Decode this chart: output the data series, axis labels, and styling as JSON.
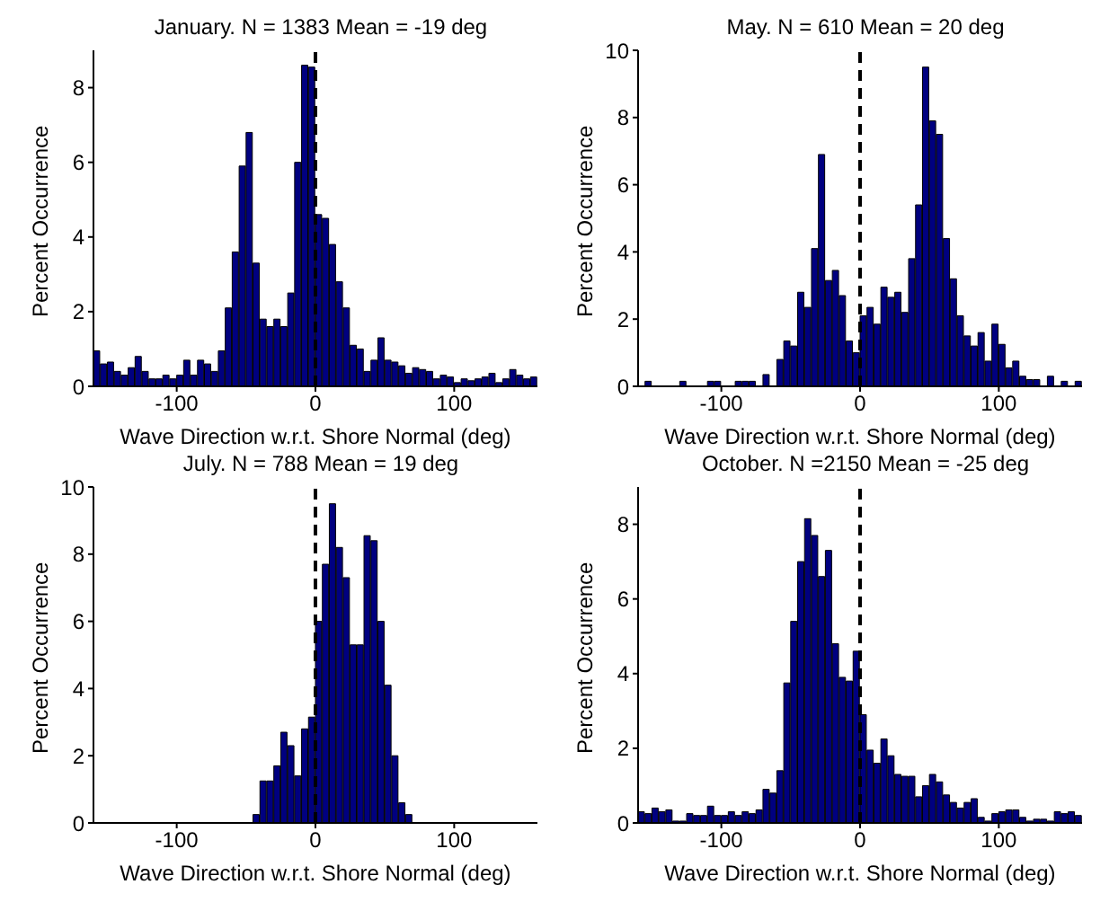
{
  "chart_data": [
    {
      "type": "histogram",
      "title": "January. N = 1383 Mean = -19 deg",
      "xlabel": "Wave Direction w.r.t. Shore Normal (deg)",
      "ylabel": "Percent Occurrence",
      "color": "#000080",
      "bins": [
        -160,
        -155,
        -150,
        -145,
        -140,
        -135,
        -130,
        -125,
        -120,
        -115,
        -110,
        -105,
        -100,
        -95,
        -90,
        -85,
        -80,
        -75,
        -70,
        -65,
        -60,
        -55,
        -50,
        -45,
        -40,
        -35,
        -30,
        -25,
        -20,
        -15,
        -10,
        -5,
        0,
        5,
        10,
        15,
        20,
        25,
        30,
        35,
        40,
        45,
        50,
        55,
        60,
        65,
        70,
        75,
        80,
        85,
        90,
        95,
        100,
        105,
        110,
        115,
        120,
        125,
        130,
        135,
        140,
        145,
        150,
        155,
        160
      ],
      "values": [
        0.95,
        0.6,
        0.65,
        0.4,
        0.3,
        0.5,
        0.8,
        0.4,
        0.2,
        0.2,
        0.3,
        0.2,
        0.3,
        0.7,
        0.3,
        0.7,
        0.6,
        0.4,
        0.95,
        2.1,
        3.6,
        5.9,
        6.8,
        3.3,
        1.8,
        1.6,
        1.8,
        1.6,
        2.5,
        6.0,
        8.6,
        8.55,
        4.6,
        4.5,
        3.8,
        2.8,
        2.1,
        1.1,
        1.0,
        0.4,
        0.7,
        1.3,
        0.7,
        0.65,
        0.55,
        0.35,
        0.5,
        0.45,
        0.4,
        0.2,
        0.3,
        0.25,
        0.1,
        0.2,
        0.15,
        0.2,
        0.25,
        0.35,
        0.1,
        0.2,
        0.45,
        0.3,
        0.2,
        0.25
      ],
      "xlim": [
        -160,
        160
      ],
      "xticks": [
        -100,
        0,
        100
      ],
      "ylim": [
        0,
        9
      ],
      "yticks": [
        0,
        2,
        4,
        6,
        8
      ],
      "ref_lines": [
        {
          "axis": "x",
          "value": 0,
          "color": "#000000",
          "line_style": "dashed"
        }
      ]
    },
    {
      "type": "histogram",
      "title": "May. N = 610 Mean = 20 deg",
      "xlabel": "Wave Direction w.r.t. Shore Normal (deg)",
      "ylabel": "Percent Occurrence",
      "color": "#000080",
      "bins": [
        -160,
        -155,
        -150,
        -145,
        -140,
        -135,
        -130,
        -125,
        -120,
        -115,
        -110,
        -105,
        -100,
        -95,
        -90,
        -85,
        -80,
        -75,
        -70,
        -65,
        -60,
        -55,
        -50,
        -45,
        -40,
        -35,
        -30,
        -25,
        -20,
        -15,
        -10,
        -5,
        0,
        5,
        10,
        15,
        20,
        25,
        30,
        35,
        40,
        45,
        50,
        55,
        60,
        65,
        70,
        75,
        80,
        85,
        90,
        95,
        100,
        105,
        110,
        115,
        120,
        125,
        130,
        135,
        140,
        145,
        150,
        155,
        160
      ],
      "values": [
        0,
        0.15,
        0,
        0,
        0,
        0,
        0.15,
        0,
        0,
        0,
        0.15,
        0.15,
        0,
        0,
        0.15,
        0.15,
        0.15,
        0,
        0.35,
        0,
        0.8,
        1.35,
        1.2,
        2.8,
        2.35,
        4.1,
        6.9,
        3.15,
        3.45,
        2.7,
        1.35,
        1.0,
        2.1,
        2.35,
        1.85,
        2.95,
        2.65,
        2.8,
        2.2,
        3.8,
        5.4,
        9.5,
        7.9,
        7.5,
        4.4,
        3.2,
        2.1,
        1.5,
        1.2,
        1.6,
        0.75,
        1.85,
        1.25,
        0.55,
        0.75,
        0.3,
        0.2,
        0.2,
        0,
        0.3,
        0,
        0.15,
        0,
        0.15
      ],
      "xlim": [
        -160,
        160
      ],
      "xticks": [
        -100,
        0,
        100
      ],
      "ylim": [
        0,
        10
      ],
      "yticks": [
        0,
        2,
        4,
        6,
        8,
        10
      ],
      "ref_lines": [
        {
          "axis": "x",
          "value": 0,
          "color": "#000000",
          "line_style": "dashed"
        }
      ]
    },
    {
      "type": "histogram",
      "title": "July. N = 788 Mean = 19 deg",
      "xlabel": "Wave Direction w.r.t. Shore Normal (deg)",
      "ylabel": "Percent Occurrence",
      "color": "#000080",
      "bins": [
        -160,
        -155,
        -150,
        -145,
        -140,
        -135,
        -130,
        -125,
        -120,
        -115,
        -110,
        -105,
        -100,
        -95,
        -90,
        -85,
        -80,
        -75,
        -70,
        -65,
        -60,
        -55,
        -50,
        -45,
        -40,
        -35,
        -30,
        -25,
        -20,
        -15,
        -10,
        -5,
        0,
        5,
        10,
        15,
        20,
        25,
        30,
        35,
        40,
        45,
        50,
        55,
        60,
        65,
        70,
        75,
        80,
        85,
        90,
        95,
        100,
        105,
        110,
        115,
        120,
        125,
        130,
        135,
        140,
        145,
        150,
        155,
        160
      ],
      "values": [
        0,
        0,
        0,
        0,
        0,
        0,
        0,
        0,
        0,
        0,
        0,
        0,
        0,
        0,
        0,
        0,
        0,
        0,
        0,
        0,
        0,
        0,
        0,
        0.25,
        1.25,
        1.25,
        1.7,
        2.7,
        2.3,
        1.4,
        2.8,
        3.15,
        6.0,
        7.7,
        9.5,
        8.2,
        7.3,
        5.3,
        5.3,
        8.55,
        8.4,
        6.0,
        4.1,
        2.0,
        0.6,
        0.25,
        0,
        0,
        0,
        0,
        0,
        0,
        0,
        0,
        0,
        0,
        0,
        0,
        0,
        0,
        0,
        0,
        0,
        0
      ],
      "xlim": [
        -160,
        160
      ],
      "xticks": [
        -100,
        0,
        100
      ],
      "ylim": [
        0,
        10
      ],
      "yticks": [
        0,
        2,
        4,
        6,
        8,
        10
      ],
      "ref_lines": [
        {
          "axis": "x",
          "value": 0,
          "color": "#000000",
          "line_style": "dashed"
        }
      ]
    },
    {
      "type": "histogram",
      "title": "October. N  =2150 Mean = -25 deg",
      "xlabel": "Wave Direction w.r.t. Shore Normal (deg)",
      "ylabel": "Percent Occurrence",
      "color": "#000080",
      "bins": [
        -160,
        -155,
        -150,
        -145,
        -140,
        -135,
        -130,
        -125,
        -120,
        -115,
        -110,
        -105,
        -100,
        -95,
        -90,
        -85,
        -80,
        -75,
        -70,
        -65,
        -60,
        -55,
        -50,
        -45,
        -40,
        -35,
        -30,
        -25,
        -20,
        -15,
        -10,
        -5,
        0,
        5,
        10,
        15,
        20,
        25,
        30,
        35,
        40,
        45,
        50,
        55,
        60,
        65,
        70,
        75,
        80,
        85,
        90,
        95,
        100,
        105,
        110,
        115,
        120,
        125,
        130,
        135,
        140,
        145,
        150,
        155,
        160
      ],
      "values": [
        0.3,
        0.25,
        0.4,
        0.3,
        0.35,
        0.05,
        0.05,
        0.25,
        0.2,
        0.2,
        0.45,
        0.2,
        0.2,
        0.3,
        0.2,
        0.3,
        0.25,
        0.35,
        0.9,
        0.8,
        1.4,
        3.75,
        5.4,
        7.0,
        8.15,
        7.7,
        6.6,
        7.3,
        4.8,
        3.9,
        3.8,
        4.6,
        2.9,
        1.95,
        1.6,
        2.25,
        1.8,
        1.3,
        1.25,
        1.25,
        0.7,
        1.0,
        1.3,
        1.1,
        0.75,
        0.55,
        0.4,
        0.55,
        0.65,
        0.15,
        0.05,
        0.25,
        0.3,
        0.35,
        0.35,
        0.15,
        0.05,
        0.1,
        0.1,
        0.05,
        0.3,
        0.25,
        0.3,
        0.2
      ],
      "xlim": [
        -160,
        160
      ],
      "xticks": [
        -100,
        0,
        100
      ],
      "ylim": [
        0,
        9
      ],
      "yticks": [
        0,
        2,
        4,
        6,
        8
      ],
      "ref_lines": [
        {
          "axis": "x",
          "value": 0,
          "color": "#000000",
          "line_style": "dashed"
        }
      ]
    }
  ]
}
